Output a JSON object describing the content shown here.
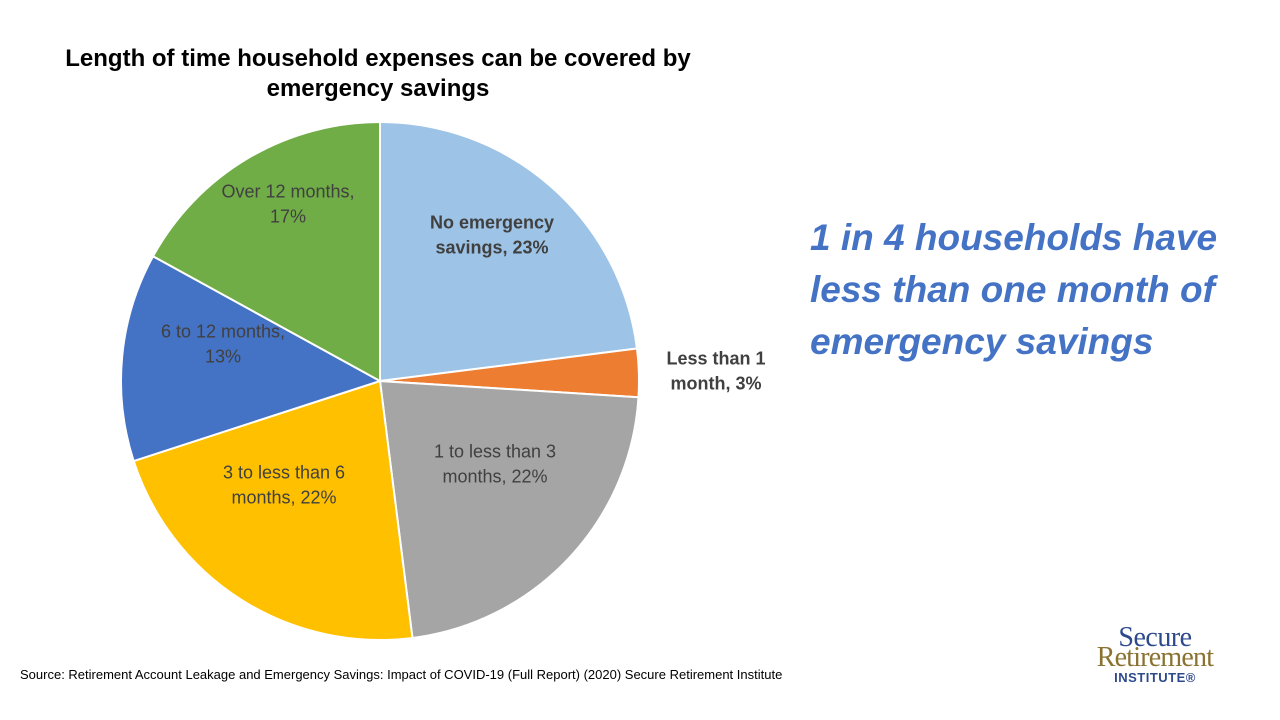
{
  "chart_data": {
    "type": "pie",
    "title": "Length of time household expenses can be covered by emergency savings",
    "start_angle_deg": 0,
    "direction": "clockwise",
    "slices": [
      {
        "category": "No emergency savings",
        "value": 23,
        "color": "#9dc3e6",
        "label_lines": [
          "No emergency",
          "savings, 23%"
        ],
        "label_bold": true,
        "label_outside": false
      },
      {
        "category": "Less than 1 month",
        "value": 3,
        "color": "#ed7d31",
        "label_lines": [
          "Less than 1",
          "month, 3%"
        ],
        "label_bold": true,
        "label_outside": true
      },
      {
        "category": "1 to less than 3 months",
        "value": 22,
        "color": "#a5a5a5",
        "label_lines": [
          "1 to less than 3",
          "months, 22%"
        ],
        "label_bold": false,
        "label_outside": false
      },
      {
        "category": "3 to less than 6 months",
        "value": 22,
        "color": "#ffc000",
        "label_lines": [
          "3 to less than 6",
          "months, 22%"
        ],
        "label_bold": false,
        "label_outside": false
      },
      {
        "category": "6 to 12 months",
        "value": 13,
        "color": "#4472c4",
        "label_lines": [
          "6 to 12 months,",
          "13%"
        ],
        "label_bold": false,
        "label_outside": false
      },
      {
        "category": "Over 12 months",
        "value": 17,
        "color": "#70ad47",
        "label_lines": [
          "Over 12 months,",
          "17%"
        ],
        "label_bold": false,
        "label_outside": false
      }
    ],
    "legend": "none"
  },
  "callout": {
    "text": "1 in 4 households have less than one month of emergency savings",
    "color": "#4472c4"
  },
  "source": "Source: Retirement Account Leakage and Emergency Savings: Impact of COVID-19 (Full Report) (2020) Secure Retirement Institute",
  "logo": {
    "line1": "Secure",
    "line2": "Retirement",
    "line3": "INSTITUTE®"
  }
}
